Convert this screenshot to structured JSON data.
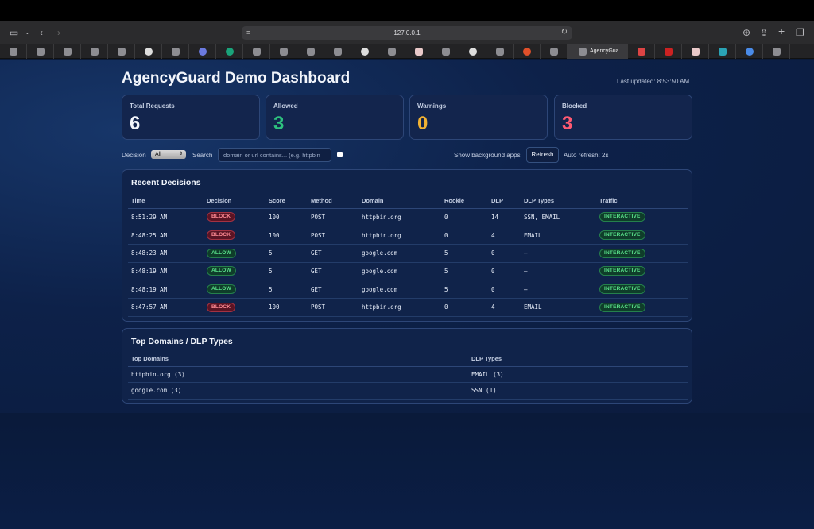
{
  "browser": {
    "url": "127.0.0.1",
    "active_tab_title": "AgencyGua..."
  },
  "title": "AgencyGuard Demo Dashboard",
  "last_updated": "Last updated: 8:53:50 AM",
  "stats": {
    "total": {
      "label": "Total Requests",
      "value": "6",
      "color": "#f2f5fb"
    },
    "allowed": {
      "label": "Allowed",
      "value": "3",
      "color": "#2ec27e"
    },
    "warnings": {
      "label": "Warnings",
      "value": "0",
      "color": "#f2b233"
    },
    "blocked": {
      "label": "Blocked",
      "value": "3",
      "color": "#ff5a72"
    }
  },
  "filters": {
    "decision_label": "Decision",
    "decision_value": "All",
    "search_label": "Search",
    "search_placeholder": "domain or url contains... (e.g. httpbin",
    "show_bg_label": "Show background apps",
    "refresh_label": "Refresh",
    "auto_refresh": "Auto refresh: 2s"
  },
  "recent": {
    "title": "Recent Decisions",
    "columns": [
      "Time",
      "Decision",
      "Score",
      "Method",
      "Domain",
      "Rookie",
      "DLP",
      "DLP Types",
      "Traffic"
    ],
    "rows": [
      {
        "time": "8:51:29 AM",
        "decision": "BLOCK",
        "score": "100",
        "method": "POST",
        "domain": "httpbin.org",
        "rookie": "0",
        "dlp": "14",
        "dlp_types": "SSN, EMAIL",
        "traffic": "INTERACTIVE"
      },
      {
        "time": "8:48:25 AM",
        "decision": "BLOCK",
        "score": "100",
        "method": "POST",
        "domain": "httpbin.org",
        "rookie": "0",
        "dlp": "4",
        "dlp_types": "EMAIL",
        "traffic": "INTERACTIVE"
      },
      {
        "time": "8:48:23 AM",
        "decision": "ALLOW",
        "score": "5",
        "method": "GET",
        "domain": "google.com",
        "rookie": "5",
        "dlp": "0",
        "dlp_types": "—",
        "traffic": "INTERACTIVE"
      },
      {
        "time": "8:48:19 AM",
        "decision": "ALLOW",
        "score": "5",
        "method": "GET",
        "domain": "google.com",
        "rookie": "5",
        "dlp": "0",
        "dlp_types": "—",
        "traffic": "INTERACTIVE"
      },
      {
        "time": "8:48:19 AM",
        "decision": "ALLOW",
        "score": "5",
        "method": "GET",
        "domain": "google.com",
        "rookie": "5",
        "dlp": "0",
        "dlp_types": "—",
        "traffic": "INTERACTIVE"
      },
      {
        "time": "8:47:57 AM",
        "decision": "BLOCK",
        "score": "100",
        "method": "POST",
        "domain": "httpbin.org",
        "rookie": "0",
        "dlp": "4",
        "dlp_types": "EMAIL",
        "traffic": "INTERACTIVE"
      }
    ]
  },
  "top": {
    "title": "Top Domains / DLP Types",
    "columns": [
      "Top Domains",
      "DLP Types"
    ],
    "rows": [
      {
        "domain": "httpbin.org (3)",
        "dlp": "EMAIL (3)"
      },
      {
        "domain": "google.com (3)",
        "dlp": "SSN (1)"
      }
    ]
  }
}
